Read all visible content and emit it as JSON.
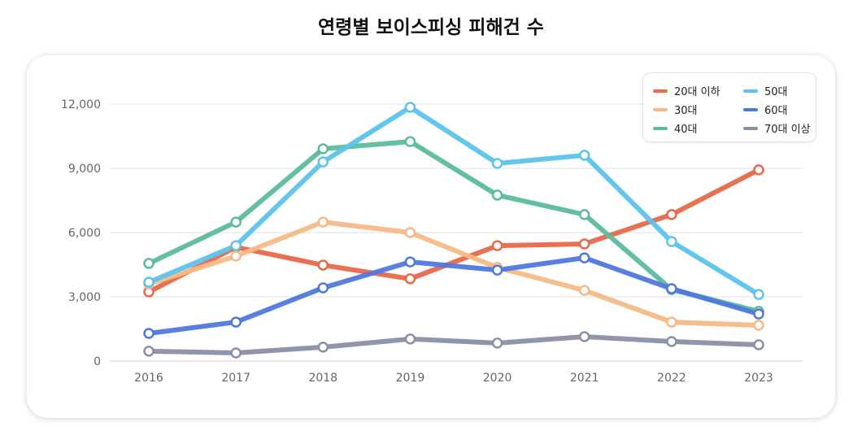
{
  "chart_data": {
    "type": "line",
    "title": "연령별 보이스피싱 피해건 수",
    "xlabel": "",
    "ylabel": "",
    "x": [
      "2016",
      "2017",
      "2018",
      "2019",
      "2020",
      "2021",
      "2022",
      "2023"
    ],
    "ylim": [
      0,
      12000
    ],
    "yticks": [
      0,
      3000,
      6000,
      9000,
      12000
    ],
    "ytick_labels": [
      "0",
      "3,000",
      "6,000",
      "9,000",
      "12,000"
    ],
    "grid": "horizontal",
    "legend_position": "top-right",
    "series": [
      {
        "name": "20대 이하",
        "color": "#e8694a",
        "values": [
          3230,
          5320,
          4480,
          3840,
          5390,
          5470,
          6840,
          8930
        ]
      },
      {
        "name": "30대",
        "color": "#f5b987",
        "values": [
          3600,
          4900,
          6490,
          6000,
          4370,
          3300,
          1820,
          1670
        ]
      },
      {
        "name": "40대",
        "color": "#5bbb9f",
        "values": [
          4560,
          6490,
          9910,
          10250,
          7750,
          6840,
          3340,
          2320
        ]
      },
      {
        "name": "50대",
        "color": "#5cc3ec",
        "values": [
          3680,
          5390,
          9300,
          11850,
          9230,
          9610,
          5580,
          3110
        ]
      },
      {
        "name": "60대",
        "color": "#4f78df",
        "values": [
          1290,
          1820,
          3420,
          4630,
          4250,
          4820,
          3380,
          2200
        ]
      },
      {
        "name": "70대 이상",
        "color": "#8a8fa8",
        "values": [
          460,
          380,
          650,
          1030,
          840,
          1140,
          910,
          760
        ]
      }
    ]
  }
}
